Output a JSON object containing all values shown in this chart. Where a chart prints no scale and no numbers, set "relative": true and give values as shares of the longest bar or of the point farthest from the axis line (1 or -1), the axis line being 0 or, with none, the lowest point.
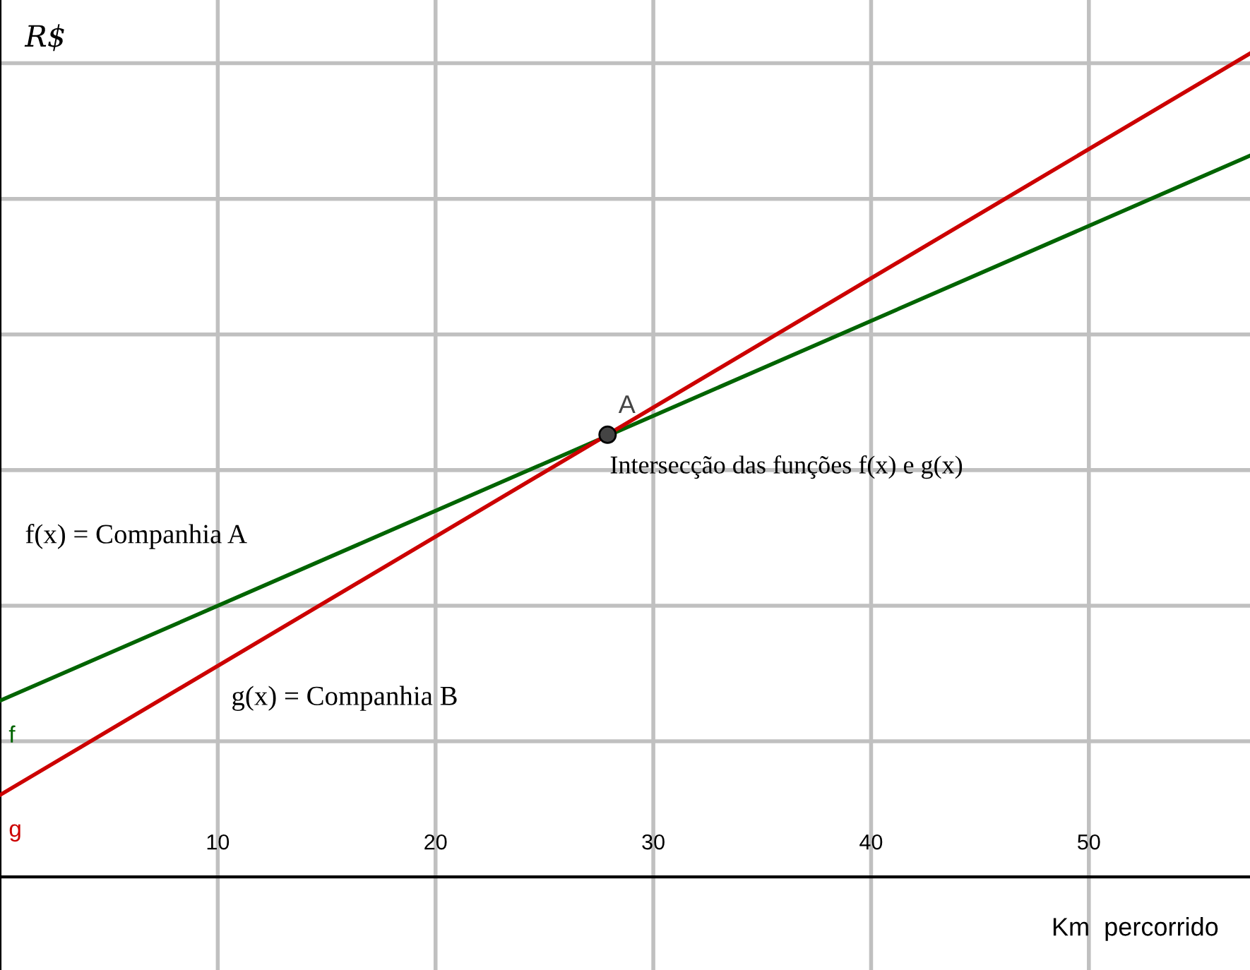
{
  "chart_data": {
    "type": "line",
    "relative": true,
    "xlabel": "Km  percorrido",
    "ylabel": "R$",
    "x": [
      0,
      57.4
    ],
    "xlim": [
      0,
      57.4
    ],
    "xticks": [
      10,
      20,
      30,
      40,
      50
    ],
    "grid": true,
    "legend": false,
    "line_style": "solid",
    "marker": "none",
    "series": [
      {
        "name": "f",
        "color": "#006400",
        "values": [
          0.214,
          0.876
        ]
      },
      {
        "name": "g",
        "color": "#cc0000",
        "values": [
          0.0995,
          1
        ]
      },
      {
        "name": "A",
        "type": "scatter",
        "color": "#444444",
        "marker": "circle",
        "x": [
          27.9
        ],
        "values": [
          0.537
        ]
      }
    ],
    "annotations": [
      {
        "text": "Intersecção das funções f(x) e g(x)",
        "x": 27.9,
        "y": 0.537
      },
      "f(x) = Companhia A",
      "g(x) = Companhia B"
    ]
  }
}
